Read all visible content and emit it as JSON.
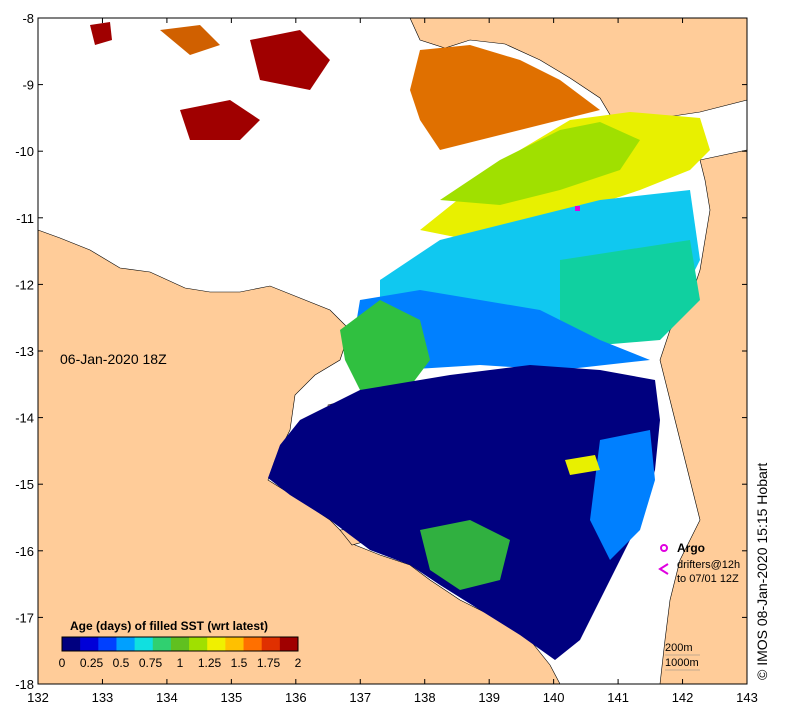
{
  "map": {
    "date_label": "06-Jan-2020 18Z",
    "credit": "© IMOS 08-Jan-2020 15:15 Hobart",
    "x_ticks": [
      "132",
      "133",
      "134",
      "135",
      "136",
      "137",
      "138",
      "139",
      "140",
      "141",
      "142",
      "143"
    ],
    "y_ticks": [
      "-8",
      "-9",
      "-10",
      "-11",
      "-12",
      "-13",
      "-14",
      "-15",
      "-16",
      "-17",
      "-18"
    ],
    "colorbar": {
      "title": "Age (days) of filled SST (wrt latest)",
      "tick_labels": [
        "0",
        "0.25",
        "0.5",
        "0.75",
        "1",
        "1.25",
        "1.5",
        "1.75",
        "2"
      ],
      "colors": [
        "#00007f",
        "#0000d8",
        "#0040ff",
        "#00a0ff",
        "#10e0e0",
        "#30d070",
        "#60c020",
        "#a0e000",
        "#f0f000",
        "#ffc000",
        "#ff7000",
        "#e03000",
        "#a00000"
      ]
    },
    "legend": {
      "argo_label": "Argo",
      "drifters_line1": "drifters@12h",
      "drifters_line2": "to 07/01 12Z",
      "argo_color": "#e000e0"
    },
    "contours": {
      "line1": "200m",
      "line2": "1000m"
    },
    "colors": {
      "land": "#ffcc99",
      "no_data": "#ffffff"
    }
  }
}
